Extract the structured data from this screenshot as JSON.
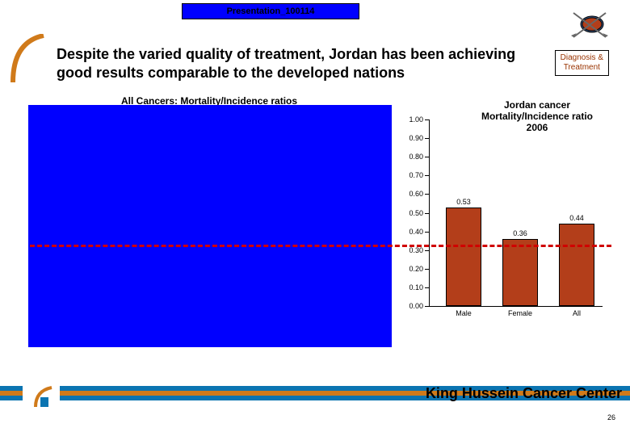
{
  "title_bar": "Presentation_100114",
  "headline": "Despite the varied quality of treatment, Jordan has been achieving good results comparable to the developed nations",
  "tag": {
    "line1": "Diagnosis &",
    "line2": "Treatment",
    "color": "#993300"
  },
  "left_title": "All Cancers: Mortality/Incidence ratios",
  "right_chart": {
    "type": "bar",
    "title_line1": "Jordan cancer",
    "title_line2": "Mortality/Incidence ratio",
    "title_year": "2006",
    "ylim": [
      0,
      1.0
    ],
    "ytick_step": 0.1,
    "ytick_labels": [
      "0.00",
      "0.10",
      "0.20",
      "0.30",
      "0.40",
      "0.50",
      "0.60",
      "0.70",
      "0.80",
      "0.90",
      "1.00"
    ],
    "categories": [
      "Male",
      "Female",
      "All"
    ],
    "values": [
      0.53,
      0.36,
      0.44
    ],
    "value_labels": [
      "0.53",
      "0.36",
      "0.44"
    ],
    "bar_color": "#b33e1a",
    "bar_border": "#000000",
    "background_color": "#ffffff",
    "label_fontsize": 9,
    "title_fontsize": 12
  },
  "dash_line_color": "#d00000",
  "left_panel_color": "#0000ff",
  "footer_text": "King Hussein Cancer Center",
  "footer_band_colors": {
    "top": "#0b74b1",
    "mid": "#d07a1a",
    "bot": "#0b74b1"
  },
  "slide_number": "26"
}
